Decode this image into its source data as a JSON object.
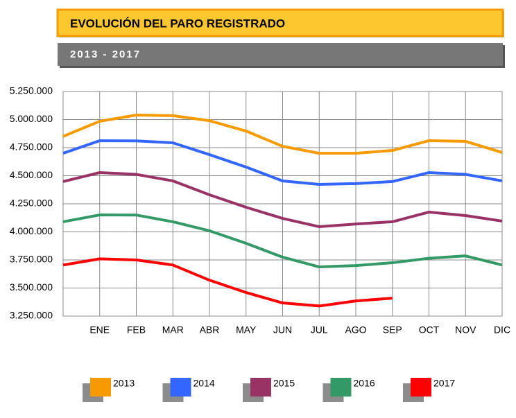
{
  "chart_data": {
    "type": "line",
    "title": "EVOLUCIÓN DEL PARO REGISTRADO",
    "subtitle": "2013 - 2017",
    "categories": [
      null,
      "ENE",
      "FEB",
      "MAR",
      "ABR",
      "MAY",
      "JUN",
      "JUL",
      "AGO",
      "SEP",
      "OCT",
      "NOV",
      "DIC"
    ],
    "series": [
      {
        "name": "2013",
        "color": "#f59b00",
        "values": [
          4850000,
          4985000,
          5040000,
          5035000,
          4990000,
          4898000,
          4762000,
          4700000,
          4700000,
          4725000,
          4812000,
          4806000,
          4707000
        ]
      },
      {
        "name": "2014",
        "color": "#3366ff",
        "values": [
          4700000,
          4812000,
          4810000,
          4793000,
          4688000,
          4577000,
          4454000,
          4423000,
          4430000,
          4448000,
          4528000,
          4512000,
          4454000
        ]
      },
      {
        "name": "2015",
        "color": "#993366",
        "values": [
          4448000,
          4528000,
          4512000,
          4454000,
          4330000,
          4219000,
          4120000,
          4046000,
          4070000,
          4090000,
          4176000,
          4145000,
          4096000
        ]
      },
      {
        "name": "2016",
        "color": "#339966",
        "values": [
          4090000,
          4151000,
          4150000,
          4090000,
          4010000,
          3898000,
          3775000,
          3688000,
          3700000,
          3725000,
          3765000,
          3786000,
          3705000
        ]
      },
      {
        "name": "2017",
        "color": "#ff0000",
        "values": [
          3705000,
          3760000,
          3750000,
          3705000,
          3570000,
          3460000,
          3367000,
          3340000,
          3385000,
          3410000,
          null,
          null,
          null
        ]
      }
    ],
    "ylim": [
      3250000,
      5250000
    ],
    "yticks": [
      {
        "value": 3250000,
        "label": "3.250.000"
      },
      {
        "value": 3500000,
        "label": "3.500.000"
      },
      {
        "value": 3750000,
        "label": "3.750.000"
      },
      {
        "value": 4000000,
        "label": "4.000.000"
      },
      {
        "value": 4250000,
        "label": "4.250.000"
      },
      {
        "value": 4500000,
        "label": "4.500.000"
      },
      {
        "value": 4750000,
        "label": "4.750.000"
      },
      {
        "value": 5000000,
        "label": "5.000.000"
      },
      {
        "value": 5250000,
        "label": "5.250.000"
      }
    ],
    "grid": true,
    "legend": "bottom"
  }
}
